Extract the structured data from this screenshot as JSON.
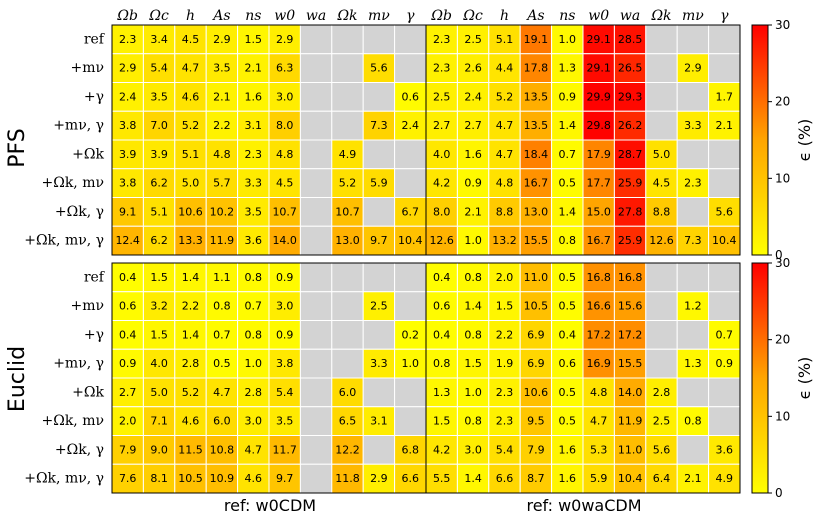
{
  "columns": [
    "Ωb",
    "Ωc",
    "h",
    "As",
    "ns",
    "w0",
    "wa",
    "Ωk",
    "mν",
    "γ"
  ],
  "row_labels": [
    "ref",
    "+mν",
    "+γ",
    "+mν, γ",
    "+Ωk",
    "+Ωk, mν",
    "+Ωk, γ",
    "+Ωk, mν, γ"
  ],
  "bottom_labels": [
    "ref: w0CDM",
    "ref: w0waCDM"
  ],
  "surveys": [
    "PFS",
    "Euclid"
  ],
  "colorbar": {
    "label": "ϵ (%)",
    "ticks": [
      "0",
      "10",
      "20",
      "30"
    ],
    "range": [
      0,
      30
    ]
  },
  "colors": {
    "missing": "#d3d3d3",
    "low": "#ffff00",
    "high": "#ff0000",
    "grid": "#ffffff"
  },
  "chart_data": [
    {
      "type": "heatmap",
      "survey": "PFS",
      "reference": "w0CDM",
      "values": [
        [
          2.3,
          3.4,
          4.5,
          2.9,
          1.5,
          2.9,
          null,
          null,
          null,
          null
        ],
        [
          2.9,
          5.4,
          4.7,
          3.5,
          2.1,
          6.3,
          null,
          null,
          5.6,
          null
        ],
        [
          2.4,
          3.5,
          4.6,
          2.1,
          1.6,
          3.0,
          null,
          null,
          null,
          0.6
        ],
        [
          3.8,
          7.0,
          5.2,
          2.2,
          3.1,
          8.0,
          null,
          null,
          7.3,
          2.4
        ],
        [
          3.9,
          3.9,
          5.1,
          4.8,
          2.3,
          4.8,
          null,
          4.9,
          null,
          null
        ],
        [
          3.8,
          6.2,
          5.0,
          5.7,
          3.3,
          4.5,
          null,
          5.2,
          5.9,
          null
        ],
        [
          9.1,
          5.1,
          10.6,
          10.2,
          3.5,
          10.7,
          null,
          10.7,
          null,
          6.7
        ],
        [
          12.4,
          6.2,
          13.3,
          11.9,
          3.6,
          14.0,
          null,
          13.0,
          9.7,
          10.4
        ]
      ]
    },
    {
      "type": "heatmap",
      "survey": "PFS",
      "reference": "w0waCDM",
      "values": [
        [
          2.3,
          2.5,
          5.1,
          19.1,
          1.0,
          29.1,
          28.5,
          null,
          null,
          null
        ],
        [
          2.3,
          2.6,
          4.4,
          17.8,
          1.3,
          29.1,
          26.5,
          null,
          2.9,
          null
        ],
        [
          2.5,
          2.4,
          5.2,
          13.5,
          0.9,
          29.9,
          29.3,
          null,
          null,
          1.7
        ],
        [
          2.7,
          2.7,
          4.7,
          13.5,
          1.4,
          29.8,
          26.2,
          null,
          3.3,
          2.1
        ],
        [
          4.0,
          1.6,
          4.7,
          18.4,
          0.7,
          17.9,
          28.7,
          5.0,
          null,
          null
        ],
        [
          4.2,
          0.9,
          4.8,
          16.7,
          0.5,
          17.7,
          25.9,
          4.5,
          2.3,
          null
        ],
        [
          8.0,
          2.1,
          8.8,
          13.0,
          1.4,
          15.0,
          27.8,
          8.8,
          null,
          5.6
        ],
        [
          12.6,
          1.0,
          13.2,
          15.5,
          0.8,
          16.7,
          25.9,
          12.6,
          7.3,
          10.4
        ]
      ]
    },
    {
      "type": "heatmap",
      "survey": "Euclid",
      "reference": "w0CDM",
      "values": [
        [
          0.4,
          1.5,
          1.4,
          1.1,
          0.8,
          0.9,
          null,
          null,
          null,
          null
        ],
        [
          0.6,
          3.2,
          2.2,
          0.8,
          0.7,
          3.0,
          null,
          null,
          2.5,
          null
        ],
        [
          0.4,
          1.5,
          1.4,
          0.7,
          0.8,
          0.9,
          null,
          null,
          null,
          0.2
        ],
        [
          0.9,
          4.0,
          2.8,
          0.5,
          1.0,
          3.8,
          null,
          null,
          3.3,
          1.0
        ],
        [
          2.7,
          5.0,
          5.2,
          4.7,
          2.8,
          5.4,
          null,
          6.0,
          null,
          null
        ],
        [
          2.0,
          7.1,
          4.6,
          6.0,
          3.0,
          3.5,
          null,
          6.5,
          3.1,
          null
        ],
        [
          7.9,
          9.0,
          11.5,
          10.8,
          4.7,
          11.7,
          null,
          12.2,
          null,
          6.8
        ],
        [
          7.6,
          8.1,
          10.5,
          10.9,
          4.6,
          9.7,
          null,
          11.8,
          2.9,
          6.6
        ]
      ]
    },
    {
      "type": "heatmap",
      "survey": "Euclid",
      "reference": "w0waCDM",
      "values": [
        [
          0.4,
          0.8,
          2.0,
          11.0,
          0.5,
          16.8,
          16.8,
          null,
          null,
          null
        ],
        [
          0.6,
          1.4,
          1.5,
          10.5,
          0.5,
          16.6,
          15.6,
          null,
          1.2,
          null
        ],
        [
          0.4,
          0.8,
          2.2,
          6.9,
          0.4,
          17.2,
          17.2,
          null,
          null,
          0.7
        ],
        [
          0.8,
          1.5,
          1.9,
          6.9,
          0.6,
          16.9,
          15.5,
          null,
          1.3,
          0.9
        ],
        [
          1.3,
          1.0,
          2.3,
          10.6,
          0.5,
          4.8,
          14.0,
          2.8,
          null,
          null
        ],
        [
          1.5,
          0.8,
          2.3,
          9.5,
          0.5,
          4.7,
          11.9,
          2.5,
          0.8,
          null
        ],
        [
          4.2,
          3.0,
          5.4,
          7.9,
          1.6,
          5.3,
          11.0,
          5.6,
          null,
          3.6
        ],
        [
          5.5,
          1.4,
          6.6,
          8.7,
          1.6,
          5.9,
          10.4,
          6.4,
          2.1,
          4.9
        ]
      ]
    }
  ]
}
